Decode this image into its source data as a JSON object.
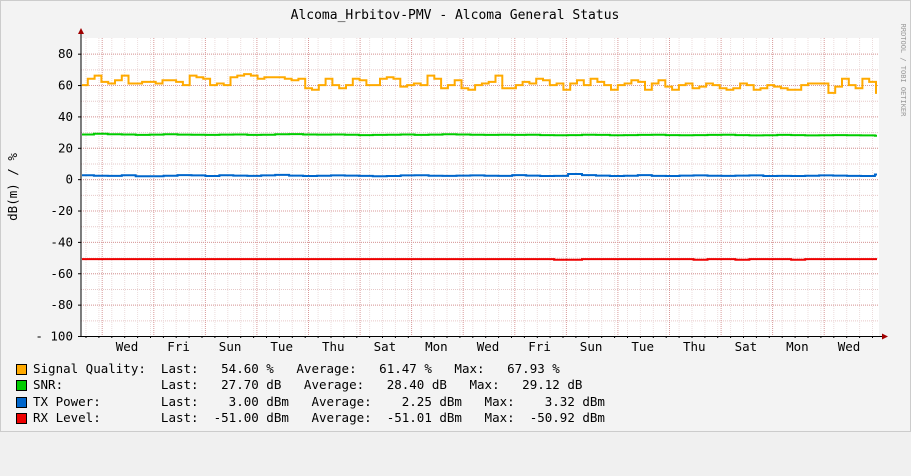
{
  "chart_data": {
    "type": "line",
    "title": "Alcoma_Hrbitov-PMV - Alcoma General Status",
    "ylabel": "dB(m) / %",
    "watermark": "RRDTOOL / TOBI OETIKER",
    "ylim": [
      -100,
      90
    ],
    "yticks": [
      80,
      60,
      40,
      20,
      0,
      -20,
      -40,
      -60,
      -80,
      -100
    ],
    "ytick_labels": [
      "80",
      "60",
      "40",
      "20",
      "0",
      "-20",
      "-40",
      "-60",
      "-80",
      "- 100"
    ],
    "x_labels": [
      "Wed",
      "Fri",
      "Sun",
      "Tue",
      "Thu",
      "Sat",
      "Mon",
      "Wed",
      "Fri",
      "Sun",
      "Tue",
      "Thu",
      "Sat",
      "Mon",
      "Wed"
    ],
    "grid": true,
    "series": [
      {
        "name": "Signal Quality",
        "color": "#ffaa00",
        "values": [
          60,
          64,
          66,
          62,
          61,
          63,
          66,
          61,
          61,
          62,
          62,
          61,
          63,
          63,
          62,
          60,
          66,
          65,
          64,
          60,
          61,
          60,
          65,
          66,
          67,
          66,
          64,
          65,
          65,
          65,
          64,
          63,
          64,
          58,
          57,
          60,
          64,
          60,
          58,
          60,
          64,
          63,
          60,
          60,
          64,
          65,
          64,
          59,
          60,
          61,
          60,
          66,
          64,
          58,
          60,
          63,
          58,
          57,
          60,
          61,
          62,
          66,
          58,
          58,
          60,
          62,
          61,
          64,
          63,
          60,
          61,
          57,
          61,
          63,
          60,
          64,
          62,
          60,
          57,
          60,
          61,
          63,
          62,
          57,
          61,
          63,
          59,
          57,
          60,
          61,
          58,
          59,
          61,
          60,
          58,
          57,
          58,
          61,
          60,
          57,
          58,
          60,
          59,
          58,
          57,
          57,
          60,
          61,
          61,
          61,
          55,
          59,
          64,
          60,
          58,
          64,
          62,
          55
        ]
      },
      {
        "name": "SNR",
        "color": "#00cc00",
        "values": [
          28.5,
          29,
          28.6,
          28.5,
          28.2,
          28.4,
          28.6,
          28.4,
          28.3,
          28.2,
          28.4,
          28.5,
          28.2,
          28.3,
          28.6,
          28.7,
          28.5,
          28.4,
          28.5,
          28.3,
          28.1,
          28.2,
          28.3,
          28.5,
          28.2,
          28.4,
          28.6,
          28.5,
          28.3,
          28.2,
          28.3,
          28.2,
          28.3,
          28.1,
          28.0,
          28.1,
          28.3,
          28.2,
          28.0,
          28.1,
          28.2,
          28.3,
          28.1,
          28.0,
          28.1,
          28.2,
          28.3,
          28.1,
          27.9,
          28.0,
          28.2,
          28.1,
          27.9,
          28.0,
          28.1,
          28.0,
          27.9,
          27.7
        ]
      },
      {
        "name": "TX Power",
        "color": "#0066cc",
        "values": [
          2.5,
          2.2,
          2.1,
          2.5,
          1.8,
          1.9,
          2.2,
          2.6,
          2.4,
          2.0,
          2.5,
          2.3,
          2.1,
          2.4,
          2.7,
          2.3,
          2.0,
          2.2,
          2.4,
          2.3,
          2.1,
          1.9,
          2.0,
          2.4,
          2.5,
          2.2,
          2.1,
          2.3,
          2.4,
          2.2,
          2.1,
          2.6,
          2.3,
          2.0,
          2.1,
          3.3,
          2.6,
          2.3,
          2.0,
          2.2,
          2.6,
          2.1,
          2.0,
          2.3,
          2.4,
          2.2,
          2.1,
          2.3,
          2.4,
          2.0,
          2.1,
          2.0,
          2.2,
          2.4,
          2.3,
          2.1,
          2.0,
          3.0
        ]
      },
      {
        "name": "RX Level",
        "color": "#ee0000",
        "values": [
          -51,
          -51,
          -51,
          -51,
          -51,
          -51,
          -51,
          -51,
          -51,
          -51,
          -51,
          -51,
          -51,
          -51,
          -51,
          -51,
          -51,
          -51,
          -51,
          -51,
          -51,
          -51,
          -51,
          -51,
          -51,
          -51,
          -51,
          -51,
          -51,
          -51,
          -51,
          -51,
          -51,
          -51,
          -51.4,
          -51.4,
          -51,
          -51,
          -51,
          -51,
          -51,
          -51,
          -51,
          -51,
          -51.4,
          -51,
          -51,
          -51.4,
          -51,
          -51,
          -51,
          -51.4,
          -51,
          -51,
          -51,
          -51,
          -51,
          -51
        ]
      }
    ]
  },
  "legend": [
    {
      "color": "#ffaa00",
      "text": "Signal Quality:  Last:   54.60 %   Average:   61.47 %   Max:   67.93 %"
    },
    {
      "color": "#00cc00",
      "text": "SNR:             Last:   27.70 dB   Average:   28.40 dB   Max:   29.12 dB"
    },
    {
      "color": "#0066cc",
      "text": "TX Power:        Last:    3.00 dBm   Average:    2.25 dBm   Max:    3.32 dBm"
    },
    {
      "color": "#ee0000",
      "text": "RX Level:        Last:  -51.00 dBm   Average:  -51.01 dBm   Max:  -50.92 dBm"
    }
  ]
}
